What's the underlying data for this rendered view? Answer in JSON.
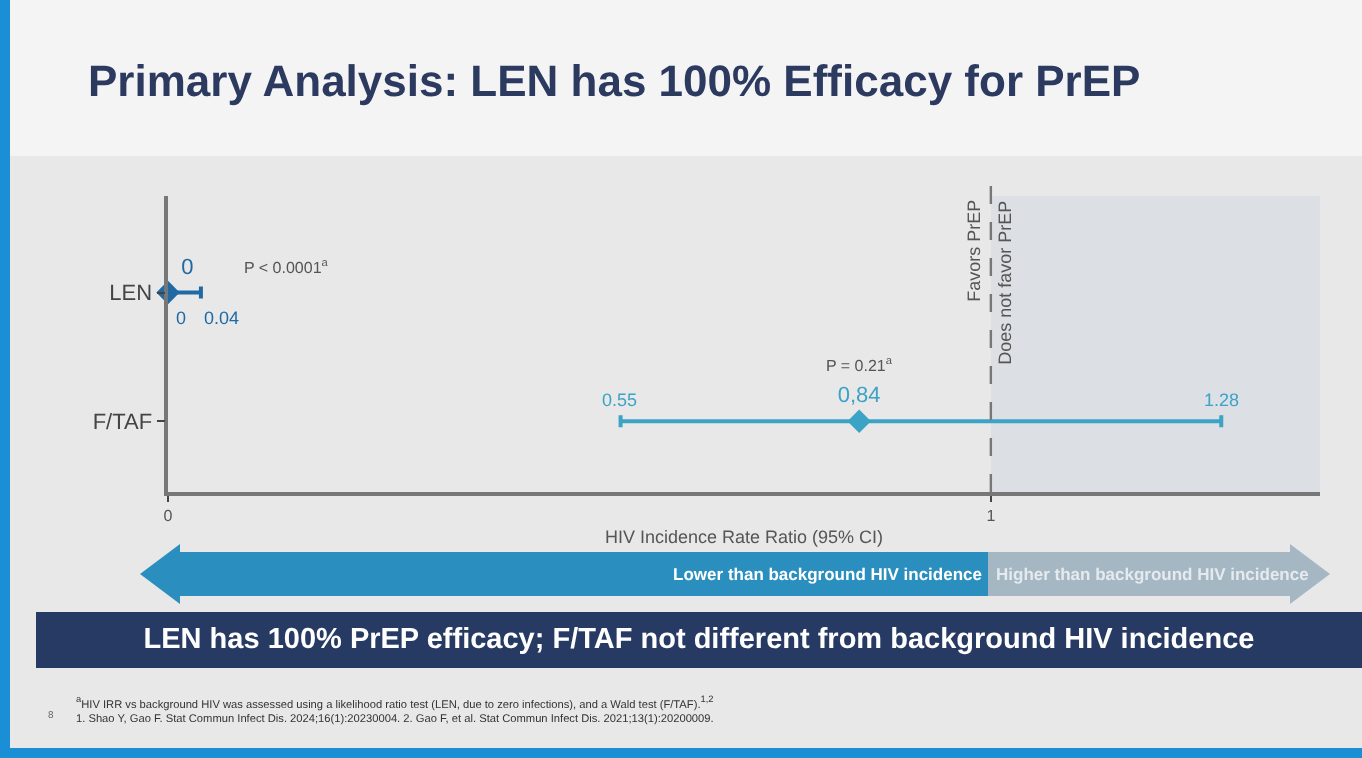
{
  "chart_data": {
    "type": "scatter",
    "orientation": "horizontal",
    "title": "Primary Analysis: LEN has 100% Efficacy for PrEP",
    "xlabel": "HIV Incidence Rate Ratio (95% CI)",
    "categories": [
      "LEN",
      "F/TAF"
    ],
    "values": [
      0,
      0.84
    ],
    "errors": [
      [
        0,
        0.04
      ],
      [
        0.55,
        1.28
      ]
    ],
    "colors": [
      "#1f6aa5",
      "#3aa3c6"
    ],
    "value_labels": [
      "0",
      "0,84"
    ],
    "marker": "diamond",
    "xlim": [
      0,
      1.4
    ],
    "xticks": [
      0,
      1
    ],
    "grid": false,
    "ref_lines": [
      {
        "axis": "x",
        "value": 1,
        "label": "Favors PrEP",
        "color": "#777777",
        "line_style": "dashed"
      }
    ],
    "bands": [
      {
        "axis": "x",
        "from": 1,
        "to": 1.4,
        "label": "Does not favor PrEP",
        "color": "#dcdfe3"
      }
    ],
    "annotations": [
      "P < 0.0001$^{a}$",
      "0",
      "0.04",
      "P = 0.21$^{a}$",
      "0.55",
      "1.28",
      "LEN has 100% PrEP efficacy; F/TAF not different from background HIV incidence",
      "Lower than background HIV incidence",
      "Higher than background HIV incidence",
      "$^{a}$HIV IRR vs background HIV was assessed using a likelihood ratio test (LEN, due to zero infections), and a Wald test (F/TAF).$^{1,2}$",
      "1. Shao Y, Gao F. Stat Commun Infect Dis. 2024;16(1):20230004. 2. Gao F, et al. Stat Commun Infect Dis. 2021;13(1):20200009.",
      "8"
    ]
  }
}
